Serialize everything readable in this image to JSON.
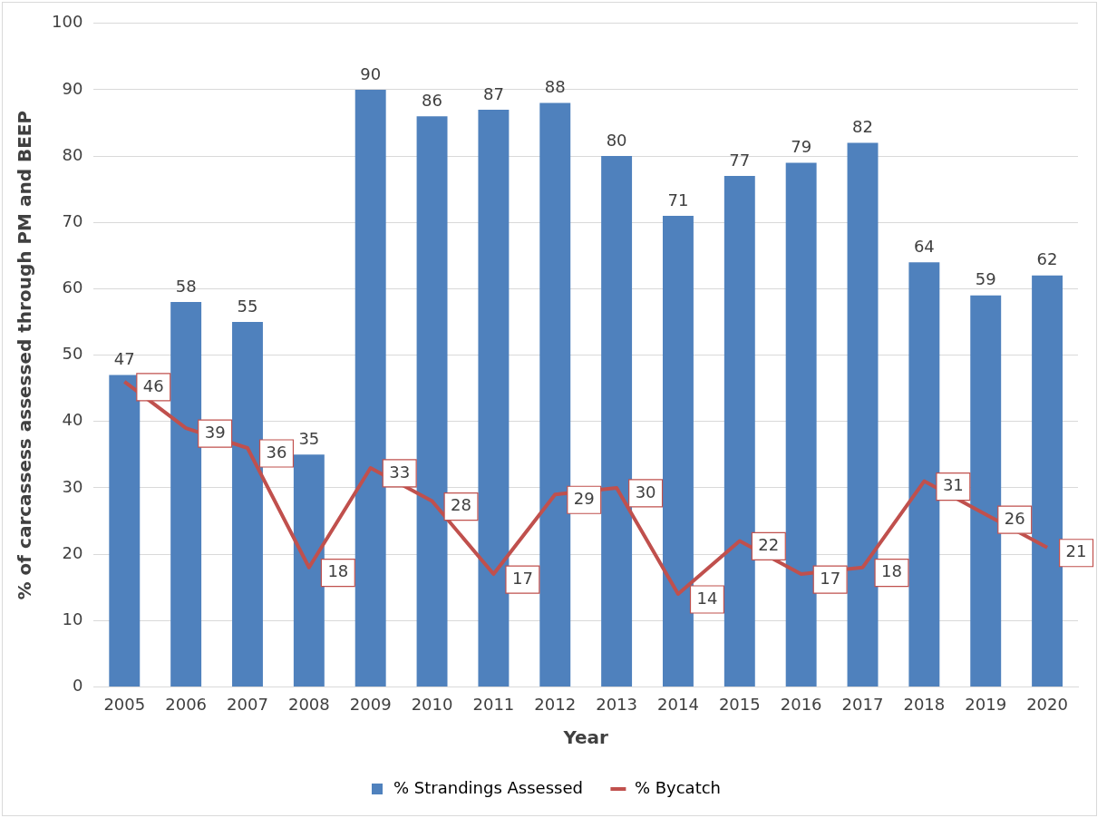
{
  "chart_data": {
    "type": "bar",
    "xlabel": "Year",
    "ylabel": "% of carcassess assessed through PM and BEEP",
    "categories": [
      "2005",
      "2006",
      "2007",
      "2008",
      "2009",
      "2010",
      "2011",
      "2012",
      "2013",
      "2014",
      "2015",
      "2016",
      "2017",
      "2018",
      "2019",
      "2020"
    ],
    "series": [
      {
        "name": "% Strandings Assessed",
        "color": "#4f81bd",
        "values": [
          47,
          58,
          55,
          35,
          90,
          86,
          87,
          88,
          80,
          71,
          77,
          79,
          82,
          64,
          59,
          62
        ]
      },
      {
        "name": "% Bycatch",
        "type": "line",
        "color": "#c0504d",
        "values": [
          46,
          39,
          36,
          18,
          33,
          28,
          17,
          29,
          30,
          14,
          22,
          17,
          18,
          31,
          26,
          21
        ]
      }
    ],
    "ylim": [
      0,
      100
    ],
    "yticks": [
      0,
      10,
      20,
      30,
      40,
      50,
      60,
      70,
      80,
      90,
      100
    ],
    "grid": "y",
    "legend": "bottom",
    "data_labels": true,
    "marker": "none",
    "line_style": "solid"
  }
}
